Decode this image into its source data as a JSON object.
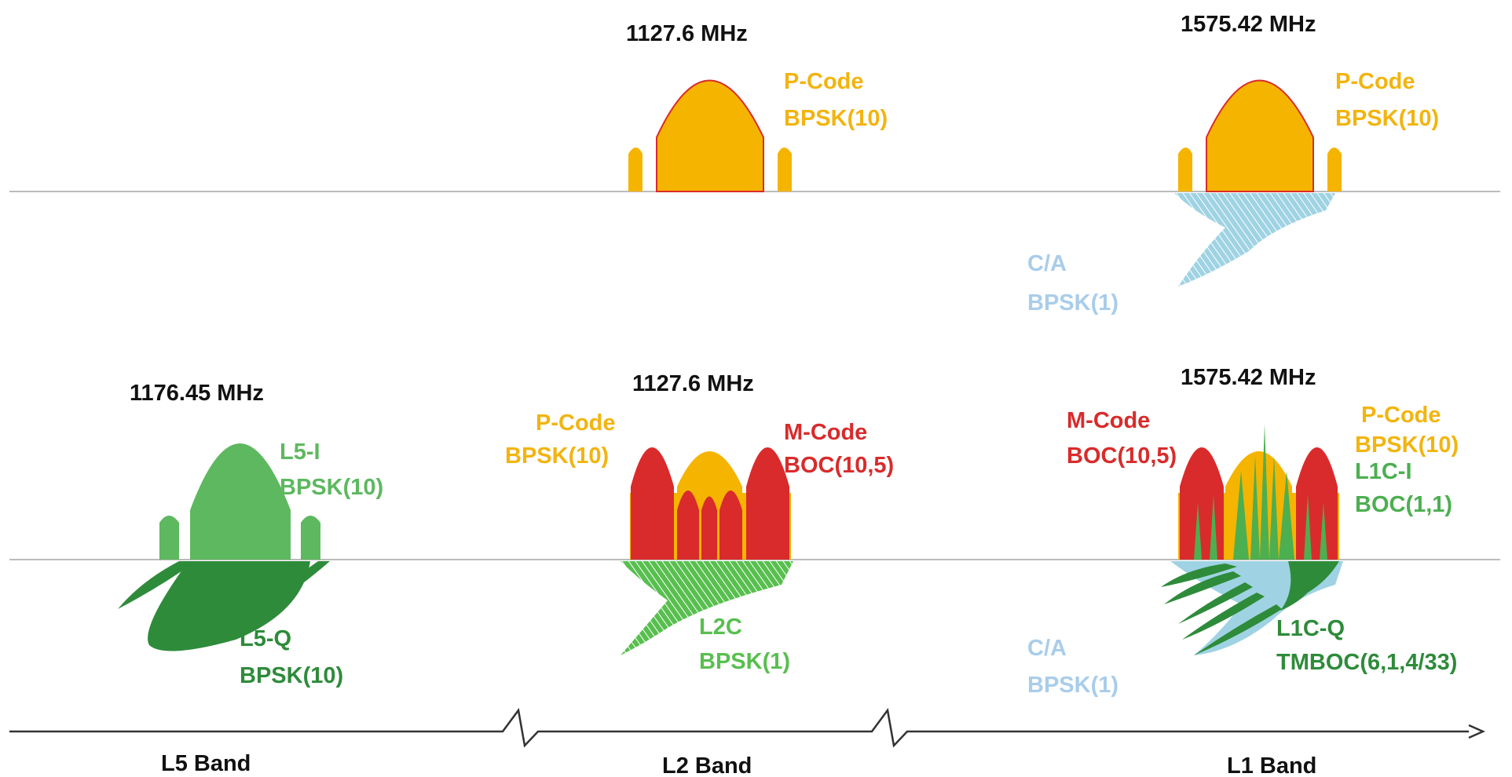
{
  "colors": {
    "pcode": "#F5B400",
    "pcode_label": "#F2B40F",
    "mcode": "#D92B2B",
    "ca": "#9FD3E3",
    "ca_label": "#A9CDEA",
    "l5i": "#5DB85F",
    "l5q": "#2E8B3A",
    "l2c": "#58BF4F",
    "l1ci": "#4CAF50",
    "l1cq": "#2E8B3A",
    "baseline": "#BBBBBB",
    "axis": "#333333"
  },
  "top_row": {
    "l2": {
      "freq": "1127.6 MHz",
      "pcode_name": "P-Code",
      "pcode_mod": "BPSK(10)"
    },
    "l1": {
      "freq": "1575.42 MHz",
      "pcode_name": "P-Code",
      "pcode_mod": "BPSK(10)",
      "ca_name": "C/A",
      "ca_mod": "BPSK(1)"
    }
  },
  "bottom_row": {
    "l5": {
      "freq": "1176.45 MHz",
      "i_name": "L5-I",
      "i_mod": "BPSK(10)",
      "q_name": "L5-Q",
      "q_mod": "BPSK(10)"
    },
    "l2": {
      "freq": "1127.6 MHz",
      "pcode_name": "P-Code",
      "pcode_mod": "BPSK(10)",
      "mcode_name": "M-Code",
      "mcode_mod": "BOC(10,5)",
      "l2c_name": "L2C",
      "l2c_mod": "BPSK(1)"
    },
    "l1": {
      "freq": "1575.42 MHz",
      "mcode_name": "M-Code",
      "mcode_mod": "BOC(10,5)",
      "pcode_name": "P-Code",
      "pcode_mod": "BPSK(10)",
      "l1ci_name": "L1C-I",
      "l1ci_mod": "BOC(1,1)",
      "ca_name": "C/A",
      "ca_mod": "BPSK(1)",
      "l1cq_name": "L1C-Q",
      "l1cq_mod": "TMBOC(6,1,4/33)"
    }
  },
  "bands": {
    "l5": "L5 Band",
    "l2": "L2 Band",
    "l1": "L1 Band"
  }
}
